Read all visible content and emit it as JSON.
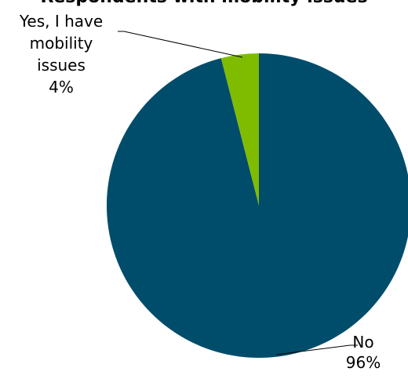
{
  "chart_data": {
    "type": "pie",
    "title": "Respondents with mobility issues",
    "slices": [
      {
        "label_lines": [
          "No",
          "96%"
        ],
        "value": 96,
        "color": "#004d6b"
      },
      {
        "label_lines": [
          "Yes, I have",
          "mobility",
          "issues",
          "4%"
        ],
        "value": 4,
        "color": "#7fbc00"
      }
    ],
    "start_angle_deg": 0,
    "direction": "clockwise",
    "legend": "none",
    "leader_lines": true
  }
}
